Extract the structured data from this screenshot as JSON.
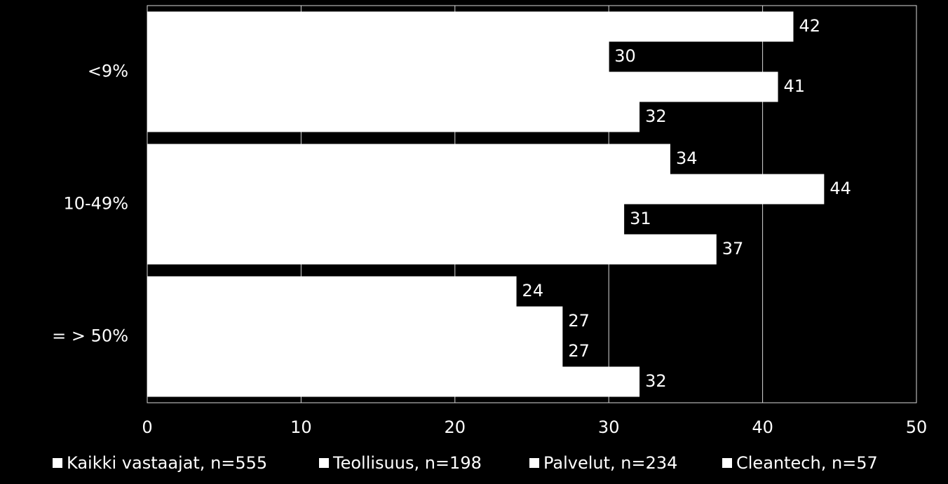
{
  "chart_data": {
    "type": "barh",
    "categories": [
      "<9%",
      "10-49%",
      "= > 50%"
    ],
    "series": [
      {
        "name": "Kaikki vastaajat, n=555",
        "color": "#ffffff",
        "values": [
          42,
          34,
          24
        ]
      },
      {
        "name": "Teollisuus, n=198",
        "color": "#ffffff",
        "values": [
          30,
          44,
          27
        ]
      },
      {
        "name": "Palvelut, n=234",
        "color": "#ffffff",
        "values": [
          41,
          31,
          27
        ]
      },
      {
        "name": "Cleantech, n=57",
        "color": "#ffffff",
        "values": [
          32,
          37,
          32
        ]
      }
    ],
    "xlim": [
      0,
      50
    ],
    "xticks": [
      0,
      10,
      20,
      30,
      40,
      50
    ],
    "grid": true,
    "legend": "bottom"
  }
}
